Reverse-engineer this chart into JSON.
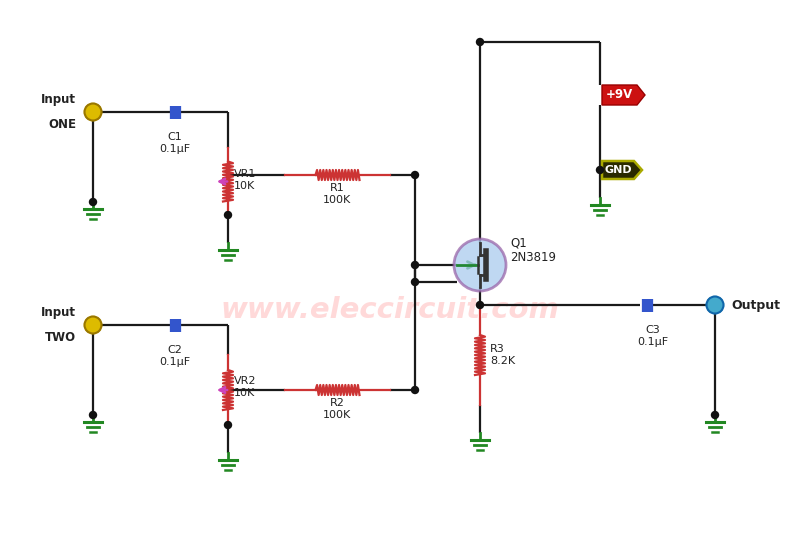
{
  "bg_color": "#ffffff",
  "wire_color": "#1a1a1a",
  "resistor_color": "#cc3333",
  "capacitor_color": "#3355cc",
  "ground_color": "#228822",
  "transistor_fill": "#aaccee",
  "transistor_edge": "#9966aa",
  "transistor_inner": "#228833",
  "title_color": "#ffbbbb",
  "supply_color": "#cc1111",
  "gnd_bg": "#2a2a00",
  "gnd_border": "#aaaa00",
  "input_dot_color": "#ddbb00",
  "output_dot_color": "#44aacc",
  "junction_color": "#111111",
  "arrow_color": "#cc44bb",
  "label_color": "#222222",
  "fig_width": 8.0,
  "fig_height": 5.49,
  "dpi": 100,
  "xlim": [
    0,
    800
  ],
  "ylim": [
    0,
    549
  ]
}
